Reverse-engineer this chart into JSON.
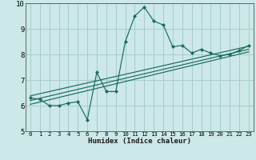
{
  "xlabel": "Humidex (Indice chaleur)",
  "ylabel": "",
  "bg_color": "#cce8e8",
  "grid_color": "#aacccc",
  "line_color": "#1a6b5a",
  "xlim": [
    -0.5,
    23.5
  ],
  "ylim": [
    5,
    10
  ],
  "xticks": [
    0,
    1,
    2,
    3,
    4,
    5,
    6,
    7,
    8,
    9,
    10,
    11,
    12,
    13,
    14,
    15,
    16,
    17,
    18,
    19,
    20,
    21,
    22,
    23
  ],
  "yticks": [
    5,
    6,
    7,
    8,
    9,
    10
  ],
  "main_x": [
    0,
    1,
    2,
    3,
    4,
    5,
    6,
    7,
    8,
    9,
    10,
    11,
    12,
    13,
    14,
    15,
    16,
    17,
    18,
    19,
    20,
    21,
    22,
    23
  ],
  "main_y": [
    6.3,
    6.25,
    6.0,
    6.0,
    6.1,
    6.15,
    5.45,
    7.3,
    6.55,
    6.55,
    8.5,
    9.5,
    9.85,
    9.3,
    9.15,
    8.3,
    8.35,
    8.05,
    8.2,
    8.05,
    7.95,
    8.0,
    8.15,
    8.35
  ],
  "reg_lines": [
    {
      "x0": 0,
      "y0": 6.05,
      "x1": 23,
      "y1": 8.1
    },
    {
      "x0": 0,
      "y0": 6.2,
      "x1": 23,
      "y1": 8.2
    },
    {
      "x0": 0,
      "y0": 6.38,
      "x1": 23,
      "y1": 8.32
    }
  ]
}
